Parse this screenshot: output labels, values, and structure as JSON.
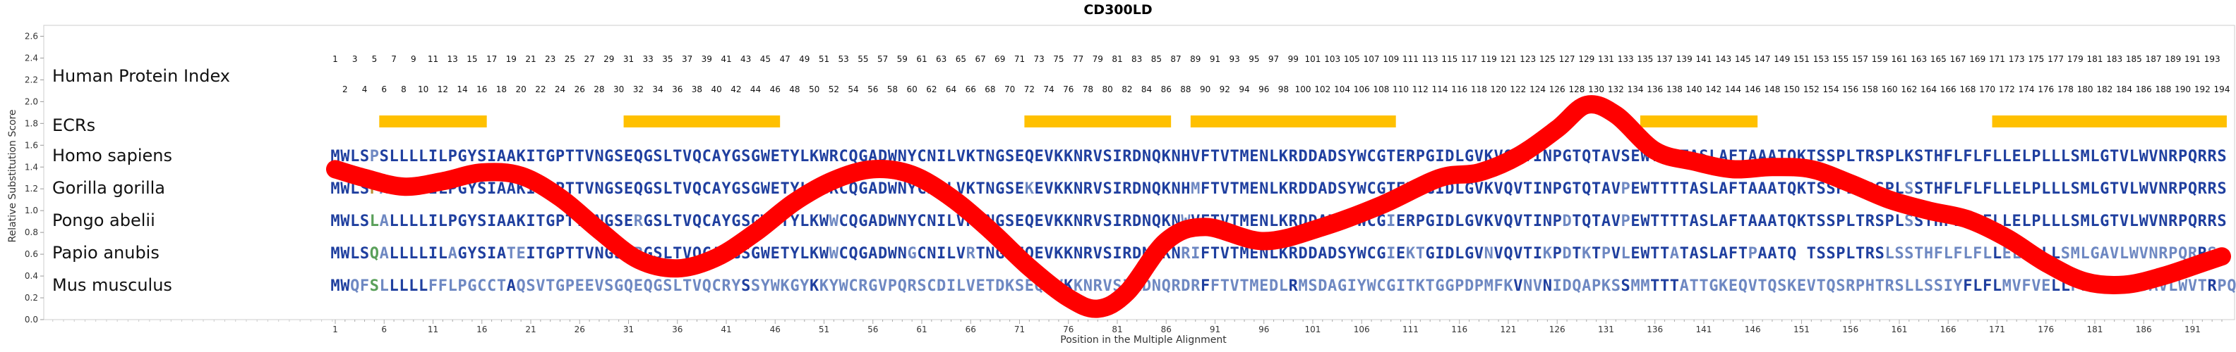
{
  "chart_data": {
    "type": "line",
    "title": "CD300LD",
    "xlabel": "Position in the Multiple Alignment",
    "ylabel": "Relative Substitution Score",
    "xlim": [
      1,
      194
    ],
    "ylim": [
      0,
      2.7
    ],
    "y_ticks": [
      "0.0",
      "0.2",
      "0.4",
      "0.6",
      "0.8",
      "1.0",
      "1.2",
      "1.4",
      "1.6",
      "1.8",
      "2.0",
      "2.2",
      "2.4",
      "2.6"
    ],
    "x_ticks": [
      "1",
      "6",
      "11",
      "16",
      "21",
      "26",
      "31",
      "36",
      "41",
      "46",
      "51",
      "56",
      "61",
      "66",
      "71",
      "76",
      "81",
      "86",
      "91",
      "96",
      "101",
      "106",
      "111",
      "116",
      "121",
      "126",
      "131",
      "136",
      "141",
      "146",
      "151",
      "156",
      "161",
      "166",
      "171",
      "176",
      "181",
      "186",
      "191"
    ],
    "index_label": "Human Protein Index",
    "index_odd": [
      "1",
      "3",
      "5",
      "7",
      "9",
      "11",
      "13",
      "15",
      "17",
      "19",
      "21",
      "23",
      "25",
      "27",
      "29",
      "31",
      "33",
      "35",
      "37",
      "39",
      "41",
      "43",
      "45",
      "47",
      "49",
      "51",
      "53",
      "55",
      "57",
      "59",
      "61",
      "63",
      "65",
      "67",
      "69",
      "71",
      "73",
      "75",
      "77",
      "79",
      "81",
      "83",
      "85",
      "87",
      "89",
      "91",
      "93",
      "95",
      "97",
      "99",
      "101",
      "103",
      "105",
      "107",
      "109",
      "111",
      "113",
      "115",
      "117",
      "119",
      "121",
      "123",
      "125",
      "127",
      "129",
      "131",
      "133",
      "135",
      "137",
      "139",
      "141",
      "143",
      "145",
      "147",
      "149",
      "151",
      "153",
      "155",
      "157",
      "159",
      "161",
      "163",
      "165",
      "167",
      "169",
      "171",
      "173",
      "175",
      "177",
      "179",
      "181",
      "183",
      "185",
      "187",
      "189",
      "191",
      "193"
    ],
    "index_even": [
      "2",
      "4",
      "6",
      "8",
      "10",
      "12",
      "14",
      "16",
      "18",
      "20",
      "22",
      "24",
      "26",
      "28",
      "30",
      "32",
      "34",
      "36",
      "38",
      "40",
      "42",
      "44",
      "46",
      "48",
      "50",
      "52",
      "54",
      "56",
      "58",
      "60",
      "62",
      "64",
      "66",
      "68",
      "70",
      "72",
      "74",
      "76",
      "78",
      "80",
      "82",
      "84",
      "86",
      "88",
      "90",
      "92",
      "94",
      "96",
      "98",
      "100",
      "102",
      "104",
      "106",
      "108",
      "110",
      "112",
      "114",
      "116",
      "118",
      "120",
      "122",
      "124",
      "126",
      "128",
      "130",
      "132",
      "134",
      "136",
      "138",
      "140",
      "142",
      "144",
      "146",
      "148",
      "150",
      "152",
      "154",
      "156",
      "158",
      "160",
      "162",
      "164",
      "166",
      "168",
      "170",
      "172",
      "174",
      "176",
      "178",
      "180",
      "182",
      "184",
      "186",
      "188",
      "190",
      "192",
      "194"
    ],
    "ecr_label": "ECRs",
    "ecr_color": "#FFC000",
    "ecrs": [
      [
        6,
        16
      ],
      [
        31,
        46
      ],
      [
        72,
        86
      ],
      [
        89,
        109
      ],
      [
        135,
        146
      ],
      [
        171,
        194
      ]
    ],
    "species": [
      {
        "name": "Homo sapiens",
        "seq": "MWLSPSLLLLILPGYSIAAKITGPTTVNGSEQGSLTVQCAYGSGWETYLKWRCQGADWNYCNILVKTNGSEQEVKKNRVSIRDNQKNHVFTVTMENLKRDDADSYWCGTERPGIDLGVKVQVTINPGTQTAVSEWTTTTASLAFTAAATQKTSSPLTRSPLKSTHFLFLFLLELPLLLSMLGTVLWVNRPQRRS"
      },
      {
        "name": "Gorilla gorilla",
        "seq": "MWLSPALLLLILPGYSIAAKITGPTTVNGSEQGSLTVQCAYGSGWETYLKWRCQGADWNYCNILVKTNGSEKEVKKNRVSIRDNQKNHMFTVTMENLKRDDADSYWCGTERPGIDLGVKVQVTINPGTQTAVPEWTTTTASLAFTAAATQKTSSPLTRSPLSSTHFLFLFLLELPLLLSMLGTVLWVNRPQRRS"
      },
      {
        "name": "Pongo abelii",
        "seq": "MWLSLALLLLILPGYSIAAKITGPTTVNGSERGSLTVQCAYGSGWETYLKWWCQGADWNYCNILVKTNGSEQEVKKNRVSIRDNQKNWVFTVTMENLKRDDADSYWCGIERPGIDLGVKVQVTINPDTQTAVPEWTTTTASLAFTAAATQKTSSPLTRSPLSSTHFLFLFLLELPLLLSMLGTVLWVNRPQRRS"
      },
      {
        "name": "Papio anubis",
        "seq": "MWLSQALLLLILAGYSIATEITGPTTVNGSERGSLTVQCAYGSGWETYLKWWCQGADWNGCNILVRTNGSEQEVKKNRVSIRDNQKNRIFTVTMENLKRDDADSYWCGIEKTGIDLGVNVQVTIKPDTKTPVLEWTTATASLAFTPAATQ-TSSPLTRSLSSTHFLFLFLLELPLLLSMLGAVLWVNRPQRRS"
      },
      {
        "name": "Mus musculus",
        "seq": "MWQFSLLLLLFFLPGCCTAQSVTGPEEVSGQEQGSLTVQCRYSSYWKGYKKYWCRGVPQRSCDILVETDKSEQLVKKNRVSIRDNQRDRFFTVTMEDLRMSDAGIYWCGITKTGGPDPMFKVNVNIDQAPKSSMMTTTATTGKEQVTQSKEVTQSRPHTRSLLSSIYFLFLMVFVELLPLLLSMLSAVLWVTRPQRCF"
      }
    ],
    "series": [
      {
        "name": "",
        "color": "#FF0000",
        "x": [
          1,
          4,
          8,
          12,
          16,
          20,
          24,
          28,
          32,
          36,
          40,
          44,
          48,
          52,
          56,
          60,
          64,
          68,
          72,
          76,
          79,
          82,
          86,
          90,
          96,
          102,
          108,
          114,
          118,
          122,
          126,
          129,
          132,
          136,
          140,
          144,
          148,
          152,
          156,
          160,
          164,
          168,
          172,
          176,
          180,
          184,
          188,
          192,
          194
        ],
        "y": [
          1.38,
          1.3,
          1.22,
          1.27,
          1.35,
          1.32,
          1.12,
          0.82,
          0.55,
          0.47,
          0.57,
          0.8,
          1.08,
          1.28,
          1.38,
          1.33,
          1.12,
          0.82,
          0.48,
          0.2,
          0.1,
          0.25,
          0.72,
          0.85,
          0.72,
          0.85,
          1.05,
          1.3,
          1.35,
          1.5,
          1.75,
          1.97,
          1.88,
          1.55,
          1.45,
          1.38,
          1.4,
          1.38,
          1.25,
          1.1,
          1.0,
          0.92,
          0.75,
          0.52,
          0.35,
          0.32,
          0.4,
          0.52,
          0.58
        ]
      }
    ]
  }
}
